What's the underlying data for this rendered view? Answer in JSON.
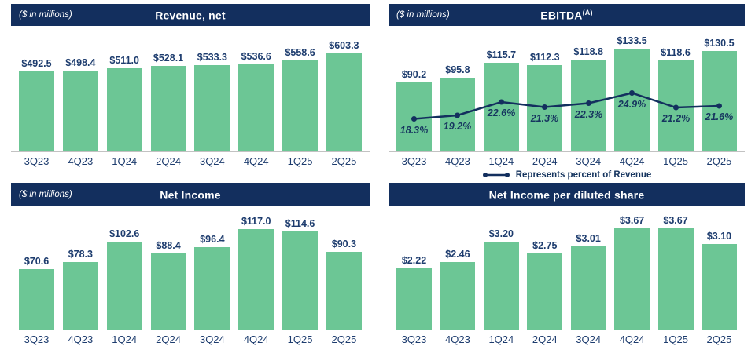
{
  "colors": {
    "header_bg": "#132f5e",
    "bar_green": "#6cc695",
    "label_navy": "#1d3c6e",
    "line_navy": "#132f5e",
    "axis_gray": "#c2c2c2"
  },
  "chart_data": [
    {
      "type": "bar",
      "title": "Revenue, net",
      "units_label": "($ in millions)",
      "categories": [
        "3Q23",
        "4Q23",
        "1Q24",
        "2Q24",
        "3Q24",
        "4Q24",
        "1Q25",
        "2Q25"
      ],
      "values": [
        492.5,
        498.4,
        511.0,
        528.1,
        533.3,
        536.6,
        558.6,
        603.3
      ],
      "value_labels": [
        "$492.5",
        "$498.4",
        "$511.0",
        "$528.1",
        "$533.3",
        "$536.6",
        "$558.6",
        "$603.3"
      ],
      "ylabel": "",
      "xlabel": "",
      "ylim": [
        0,
        770
      ],
      "grid": false,
      "legend_position": "none"
    },
    {
      "type": "bar+line",
      "title": "EBITDA",
      "title_superscript": "(A)",
      "units_label": "($ in millions)",
      "categories": [
        "3Q23",
        "4Q23",
        "1Q24",
        "2Q24",
        "3Q24",
        "4Q24",
        "1Q25",
        "2Q25"
      ],
      "values": [
        90.2,
        95.8,
        115.7,
        112.3,
        118.8,
        133.5,
        118.6,
        130.5
      ],
      "value_labels": [
        "$90.2",
        "$95.8",
        "$115.7",
        "$112.3",
        "$118.8",
        "$133.5",
        "$118.6",
        "$130.5"
      ],
      "line_series": {
        "name": "Represents percent of Revenue",
        "values": [
          18.3,
          19.2,
          22.6,
          21.3,
          22.3,
          24.9,
          21.2,
          21.6
        ],
        "labels": [
          "18.3%",
          "19.2%",
          "22.6%",
          "21.3%",
          "22.3%",
          "24.9%",
          "21.2%",
          "21.6%"
        ]
      },
      "legend_label": "Represents percent of Revenue",
      "ylabel": "",
      "xlabel": "",
      "ylim": [
        0,
        163
      ],
      "grid": false,
      "legend_position": "bottom-center"
    },
    {
      "type": "bar",
      "title": "Net Income",
      "units_label": "($ in millions)",
      "categories": [
        "3Q23",
        "4Q23",
        "1Q24",
        "2Q24",
        "3Q24",
        "4Q24",
        "1Q25",
        "2Q25"
      ],
      "values": [
        70.6,
        78.3,
        102.6,
        88.4,
        96.4,
        117.0,
        114.6,
        90.3
      ],
      "value_labels": [
        "$70.6",
        "$78.3",
        "$102.6",
        "$88.4",
        "$96.4",
        "$117.0",
        "$114.6",
        "$90.3"
      ],
      "ylabel": "",
      "xlabel": "",
      "ylim": [
        0,
        143
      ],
      "grid": false,
      "legend_position": "none"
    },
    {
      "type": "bar",
      "title": "Net Income per diluted share",
      "categories": [
        "3Q23",
        "4Q23",
        "1Q24",
        "2Q24",
        "3Q24",
        "4Q24",
        "1Q25",
        "2Q25"
      ],
      "values": [
        2.22,
        2.46,
        3.2,
        2.75,
        3.01,
        3.67,
        3.67,
        3.1
      ],
      "value_labels": [
        "$2.22",
        "$2.46",
        "$3.20",
        "$2.75",
        "$3.01",
        "$3.67",
        "$3.67",
        "$3.10"
      ],
      "ylabel": "",
      "xlabel": "",
      "ylim": [
        0,
        4.5
      ],
      "grid": false,
      "legend_position": "none"
    }
  ]
}
